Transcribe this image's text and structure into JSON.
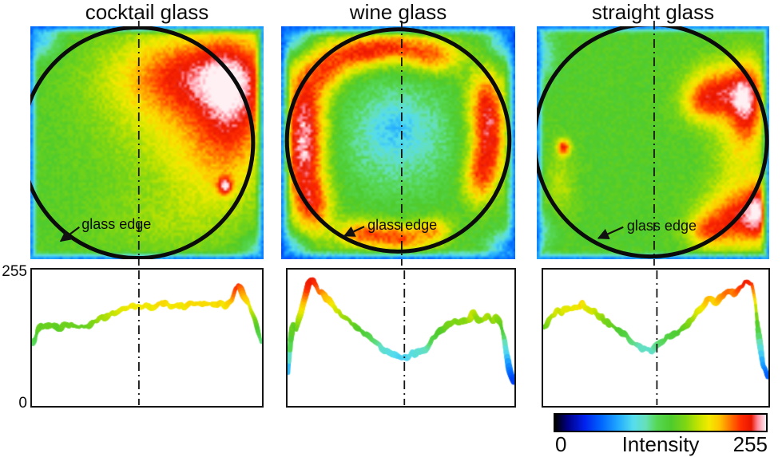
{
  "chart_data": {
    "type": "heatmap",
    "description": "Three intensity heatmaps of illuminated glasses (cocktail, wine, straight) with circular glass-edge outline, a vertical dash-dot centerline, and below each a horizontal intensity profile (0-255) taken across the glass; shared rainbow intensity colorbar.",
    "yaxis": {
      "max_label": "255",
      "min_label": "0",
      "ylim": [
        0,
        255
      ]
    },
    "colorbar": {
      "label": "Intensity",
      "min_label": "0",
      "max_label": "255",
      "min": 0,
      "max": 255,
      "stops": [
        [
          0.0,
          "#000000"
        ],
        [
          0.06,
          "#000088"
        ],
        [
          0.14,
          "#0022ee"
        ],
        [
          0.22,
          "#0066ff"
        ],
        [
          0.3,
          "#22aaff"
        ],
        [
          0.37,
          "#55ddee"
        ],
        [
          0.43,
          "#66e0b8"
        ],
        [
          0.48,
          "#57d857"
        ],
        [
          0.55,
          "#4ecb2c"
        ],
        [
          0.62,
          "#7fd613"
        ],
        [
          0.68,
          "#c4e400"
        ],
        [
          0.73,
          "#f4ea00"
        ],
        [
          0.78,
          "#ffc400"
        ],
        [
          0.83,
          "#ff7700"
        ],
        [
          0.88,
          "#ff2d00"
        ],
        [
          0.93,
          "#e81600"
        ],
        [
          0.96,
          "#ff8898"
        ],
        [
          1.0,
          "#fff0f4"
        ]
      ]
    },
    "panels": [
      {
        "title": "cocktail glass",
        "pattern": "green left half, yellow right half with large red hot region in upper-right, small red spot lower-right, thin blue rim",
        "centerline": 0.465,
        "circle": {
          "cx": 0.46,
          "cy": 0.5,
          "r": 0.495
        },
        "annotation": {
          "label": "glass edge",
          "tx": 0.22,
          "ty": 0.815,
          "tail": [
            0.21,
            0.862
          ],
          "tip": [
            0.13,
            0.922
          ]
        },
        "heatmap": {
          "base": 142,
          "noise": 7,
          "edge": {
            "width": 0.035,
            "value": 46
          },
          "blobs": [
            [
              0.7,
              0.2,
              0.24,
              0.13,
              72
            ],
            [
              0.88,
              0.3,
              0.1,
              0.2,
              52
            ],
            [
              0.62,
              0.42,
              0.26,
              0.22,
              28
            ],
            [
              0.8,
              0.55,
              0.15,
              0.2,
              33
            ],
            [
              0.835,
              0.685,
              0.022,
              0.026,
              78
            ],
            [
              0.55,
              0.85,
              0.22,
              0.1,
              16
            ],
            [
              0.04,
              0.05,
              0.06,
              0.06,
              -55
            ],
            [
              0.97,
              0.97,
              0.05,
              0.05,
              -40
            ]
          ]
        },
        "profile": {
          "ylim": [
            0,
            255
          ],
          "points": [
            [
              0,
              118
            ],
            [
              0.02,
              138
            ],
            [
              0.04,
              146
            ],
            [
              0.07,
              150
            ],
            [
              0.1,
              146
            ],
            [
              0.13,
              151
            ],
            [
              0.16,
              148
            ],
            [
              0.19,
              152
            ],
            [
              0.22,
              150
            ],
            [
              0.25,
              154
            ],
            [
              0.28,
              158
            ],
            [
              0.31,
              163
            ],
            [
              0.34,
              170
            ],
            [
              0.37,
              176
            ],
            [
              0.4,
              181
            ],
            [
              0.43,
              184
            ],
            [
              0.46,
              183
            ],
            [
              0.49,
              185
            ],
            [
              0.52,
              186
            ],
            [
              0.55,
              189
            ],
            [
              0.58,
              191
            ],
            [
              0.6,
              186
            ],
            [
              0.63,
              190
            ],
            [
              0.66,
              187
            ],
            [
              0.69,
              191
            ],
            [
              0.72,
              189
            ],
            [
              0.75,
              193
            ],
            [
              0.78,
              191
            ],
            [
              0.81,
              188
            ],
            [
              0.84,
              190
            ],
            [
              0.87,
              196
            ],
            [
              0.885,
              215
            ],
            [
              0.9,
              228
            ],
            [
              0.915,
              214
            ],
            [
              0.93,
              200
            ],
            [
              0.95,
              188
            ],
            [
              0.97,
              168
            ],
            [
              0.985,
              140
            ],
            [
              1.0,
              115
            ]
          ]
        }
      },
      {
        "title": "wine glass",
        "pattern": "bright red-orange ring along the circular glass edge, green interior fading to pale cyan at the center, blue corners",
        "centerline": 0.515,
        "circle": {
          "cx": 0.5,
          "cy": 0.49,
          "r": 0.477
        },
        "annotation": {
          "label": "glass edge",
          "tx": 0.369,
          "ty": 0.818,
          "tail": [
            0.355,
            0.86
          ],
          "tip": [
            0.27,
            0.9
          ]
        },
        "heatmap": {
          "base": 142,
          "noise": 9,
          "edge": {
            "width": 0.045,
            "value": 46
          },
          "blobs": [
            [
              0.5,
              0.47,
              0.17,
              0.17,
              -42
            ],
            [
              0.48,
              0.43,
              0.07,
              0.07,
              -16
            ],
            [
              0.1,
              0.33,
              0.07,
              0.15,
              78
            ],
            [
              0.095,
              0.58,
              0.065,
              0.14,
              80
            ],
            [
              0.14,
              0.78,
              0.06,
              0.09,
              64
            ],
            [
              0.3,
              0.12,
              0.09,
              0.055,
              72
            ],
            [
              0.48,
              0.09,
              0.1,
              0.05,
              75
            ],
            [
              0.66,
              0.13,
              0.08,
              0.055,
              66
            ],
            [
              0.2,
              0.2,
              0.06,
              0.06,
              48
            ],
            [
              0.875,
              0.33,
              0.06,
              0.11,
              76
            ],
            [
              0.89,
              0.52,
              0.055,
              0.11,
              72
            ],
            [
              0.84,
              0.66,
              0.05,
              0.08,
              58
            ],
            [
              0.34,
              0.89,
              0.08,
              0.045,
              68
            ],
            [
              0.52,
              0.91,
              0.09,
              0.045,
              72
            ],
            [
              0.66,
              0.87,
              0.05,
              0.04,
              46
            ],
            [
              0.03,
              0.04,
              0.07,
              0.06,
              -70
            ],
            [
              0.97,
              0.05,
              0.06,
              0.06,
              -70
            ],
            [
              0.03,
              0.96,
              0.06,
              0.05,
              -60
            ],
            [
              0.97,
              0.95,
              0.06,
              0.05,
              -65
            ]
          ]
        },
        "profile": {
          "ylim": [
            0,
            255
          ],
          "points": [
            [
              0,
              60
            ],
            [
              0.01,
              120
            ],
            [
              0.02,
              152
            ],
            [
              0.035,
              144
            ],
            [
              0.05,
              168
            ],
            [
              0.07,
              198
            ],
            [
              0.09,
              230
            ],
            [
              0.11,
              235
            ],
            [
              0.125,
              222
            ],
            [
              0.14,
              210
            ],
            [
              0.16,
              205
            ],
            [
              0.18,
              196
            ],
            [
              0.2,
              184
            ],
            [
              0.23,
              172
            ],
            [
              0.26,
              163
            ],
            [
              0.29,
              154
            ],
            [
              0.32,
              145
            ],
            [
              0.35,
              135
            ],
            [
              0.38,
              125
            ],
            [
              0.41,
              113
            ],
            [
              0.44,
              103
            ],
            [
              0.47,
              95
            ],
            [
              0.5,
              90
            ],
            [
              0.53,
              92
            ],
            [
              0.56,
              97
            ],
            [
              0.59,
              104
            ],
            [
              0.62,
              113
            ],
            [
              0.65,
              126
            ],
            [
              0.68,
              140
            ],
            [
              0.71,
              150
            ],
            [
              0.74,
              160
            ],
            [
              0.76,
              155
            ],
            [
              0.78,
              164
            ],
            [
              0.8,
              160
            ],
            [
              0.82,
              170
            ],
            [
              0.84,
              163
            ],
            [
              0.86,
              158
            ],
            [
              0.88,
              166
            ],
            [
              0.9,
              157
            ],
            [
              0.92,
              163
            ],
            [
              0.94,
              150
            ],
            [
              0.96,
              120
            ],
            [
              0.98,
              68
            ],
            [
              1.0,
              45
            ]
          ]
        }
      },
      {
        "title": "straight glass",
        "pattern": "mostly green with red patches at upper-right and lower-right inside the circle, small red spot at mid-left, blue rim",
        "centerline": 0.505,
        "circle": {
          "cx": 0.49,
          "cy": 0.49,
          "r": 0.5
        },
        "annotation": {
          "label": "glass edge",
          "tx": 0.388,
          "ty": 0.822,
          "tail": [
            0.372,
            0.862
          ],
          "tip": [
            0.265,
            0.91
          ]
        },
        "heatmap": {
          "base": 142,
          "noise": 7,
          "edge": {
            "width": 0.035,
            "value": 46
          },
          "blobs": [
            [
              0.8,
              0.28,
              0.1,
              0.09,
              78
            ],
            [
              0.91,
              0.33,
              0.05,
              0.13,
              70
            ],
            [
              0.7,
              0.33,
              0.06,
              0.06,
              38
            ],
            [
              0.86,
              0.83,
              0.11,
              0.09,
              82
            ],
            [
              0.95,
              0.78,
              0.04,
              0.09,
              58
            ],
            [
              0.72,
              0.88,
              0.06,
              0.05,
              44
            ],
            [
              0.86,
              0.55,
              0.08,
              0.15,
              33
            ],
            [
              0.115,
              0.52,
              0.02,
              0.024,
              85
            ],
            [
              0.1,
              0.68,
              0.05,
              0.12,
              26
            ],
            [
              0.02,
              0.12,
              0.05,
              0.08,
              -40
            ],
            [
              0.02,
              0.88,
              0.05,
              0.06,
              -35
            ]
          ]
        },
        "profile": {
          "ylim": [
            0,
            255
          ],
          "points": [
            [
              0,
              145
            ],
            [
              0.02,
              158
            ],
            [
              0.04,
              170
            ],
            [
              0.06,
              180
            ],
            [
              0.08,
              177
            ],
            [
              0.1,
              182
            ],
            [
              0.12,
              179
            ],
            [
              0.14,
              183
            ],
            [
              0.16,
              180
            ],
            [
              0.17,
              194
            ],
            [
              0.185,
              182
            ],
            [
              0.21,
              179
            ],
            [
              0.24,
              172
            ],
            [
              0.27,
              162
            ],
            [
              0.3,
              152
            ],
            [
              0.33,
              142
            ],
            [
              0.36,
              130
            ],
            [
              0.39,
              120
            ],
            [
              0.42,
              112
            ],
            [
              0.44,
              108
            ],
            [
              0.46,
              112
            ],
            [
              0.48,
              106
            ],
            [
              0.5,
              115
            ],
            [
              0.53,
              124
            ],
            [
              0.56,
              132
            ],
            [
              0.58,
              138
            ],
            [
              0.61,
              144
            ],
            [
              0.63,
              148
            ],
            [
              0.65,
              155
            ],
            [
              0.67,
              164
            ],
            [
              0.69,
              175
            ],
            [
              0.71,
              186
            ],
            [
              0.73,
              196
            ],
            [
              0.75,
              200
            ],
            [
              0.77,
              196
            ],
            [
              0.79,
              206
            ],
            [
              0.81,
              212
            ],
            [
              0.83,
              216
            ],
            [
              0.85,
              212
            ],
            [
              0.87,
              220
            ],
            [
              0.89,
              227
            ],
            [
              0.91,
              231
            ],
            [
              0.93,
              224
            ],
            [
              0.945,
              190
            ],
            [
              0.955,
              150
            ],
            [
              0.965,
              115
            ],
            [
              0.98,
              75
            ],
            [
              1.0,
              58
            ]
          ]
        }
      }
    ]
  }
}
